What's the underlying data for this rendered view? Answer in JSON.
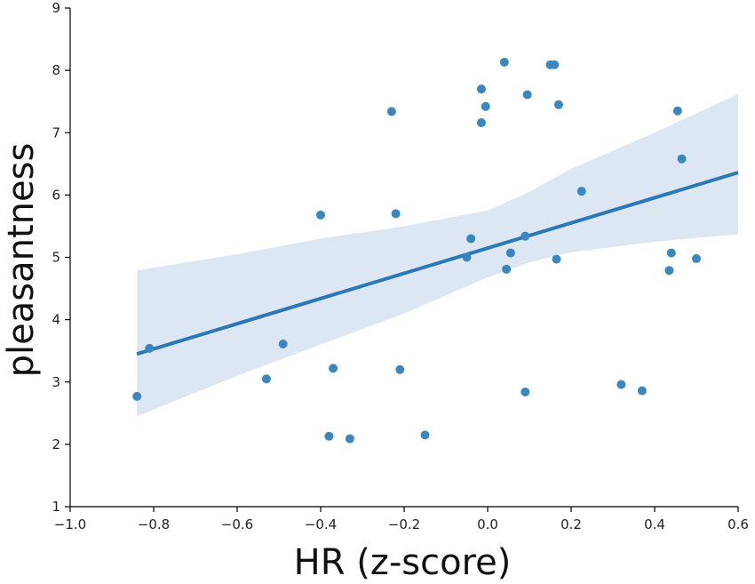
{
  "chart_data": {
    "type": "scatter",
    "title": "",
    "xlabel": "HR (z-score)",
    "ylabel": "pleasantness",
    "xlim": [
      -1.0,
      0.6
    ],
    "ylim": [
      1,
      9
    ],
    "x_ticks": [
      -1.0,
      -0.8,
      -0.6,
      -0.4,
      -0.2,
      0.0,
      0.2,
      0.4,
      0.6
    ],
    "x_tick_labels": [
      "−1.0",
      "−0.8",
      "−0.6",
      "−0.4",
      "−0.2",
      "0.0",
      "0.2",
      "0.4",
      "0.6"
    ],
    "y_ticks": [
      1,
      2,
      3,
      4,
      5,
      6,
      7,
      8,
      9
    ],
    "y_tick_labels": [
      "1",
      "2",
      "3",
      "4",
      "5",
      "6",
      "7",
      "8",
      "9"
    ],
    "grid": false,
    "legend": "none",
    "colors": {
      "points": "#3a87c0",
      "line": "#2b78b8",
      "band": "#dce7f3"
    },
    "points": [
      {
        "x": -0.84,
        "y": 2.77
      },
      {
        "x": -0.81,
        "y": 3.54
      },
      {
        "x": -0.53,
        "y": 3.05
      },
      {
        "x": -0.49,
        "y": 3.61
      },
      {
        "x": -0.4,
        "y": 5.68
      },
      {
        "x": -0.38,
        "y": 2.13
      },
      {
        "x": -0.37,
        "y": 3.22
      },
      {
        "x": -0.33,
        "y": 2.09
      },
      {
        "x": -0.23,
        "y": 7.34
      },
      {
        "x": -0.22,
        "y": 5.7
      },
      {
        "x": -0.21,
        "y": 3.2
      },
      {
        "x": -0.15,
        "y": 2.15
      },
      {
        "x": -0.05,
        "y": 5.0
      },
      {
        "x": -0.04,
        "y": 5.3
      },
      {
        "x": -0.015,
        "y": 7.7
      },
      {
        "x": -0.015,
        "y": 7.16
      },
      {
        "x": -0.005,
        "y": 7.42
      },
      {
        "x": 0.04,
        "y": 8.13
      },
      {
        "x": 0.045,
        "y": 4.81
      },
      {
        "x": 0.055,
        "y": 5.07
      },
      {
        "x": 0.09,
        "y": 5.34
      },
      {
        "x": 0.09,
        "y": 2.84
      },
      {
        "x": 0.095,
        "y": 7.61
      },
      {
        "x": 0.15,
        "y": 8.09
      },
      {
        "x": 0.16,
        "y": 8.09
      },
      {
        "x": 0.165,
        "y": 4.97
      },
      {
        "x": 0.17,
        "y": 7.45
      },
      {
        "x": 0.225,
        "y": 6.06
      },
      {
        "x": 0.32,
        "y": 2.96
      },
      {
        "x": 0.37,
        "y": 2.86
      },
      {
        "x": 0.435,
        "y": 4.79
      },
      {
        "x": 0.44,
        "y": 5.07
      },
      {
        "x": 0.455,
        "y": 7.35
      },
      {
        "x": 0.465,
        "y": 6.58
      },
      {
        "x": 0.5,
        "y": 4.98
      }
    ],
    "regression": {
      "x_start": -0.84,
      "x_end": 0.6,
      "y_start": 3.45,
      "y_end": 6.36
    },
    "confidence_band": {
      "x": [
        -0.84,
        -0.6,
        -0.4,
        -0.2,
        0.0,
        0.1,
        0.2,
        0.4,
        0.6
      ],
      "upper": [
        4.79,
        5.05,
        5.3,
        5.5,
        5.75,
        6.05,
        6.42,
        7.0,
        7.62
      ],
      "lower": [
        2.45,
        3.1,
        3.6,
        4.1,
        4.68,
        4.92,
        5.08,
        5.25,
        5.37
      ]
    }
  }
}
